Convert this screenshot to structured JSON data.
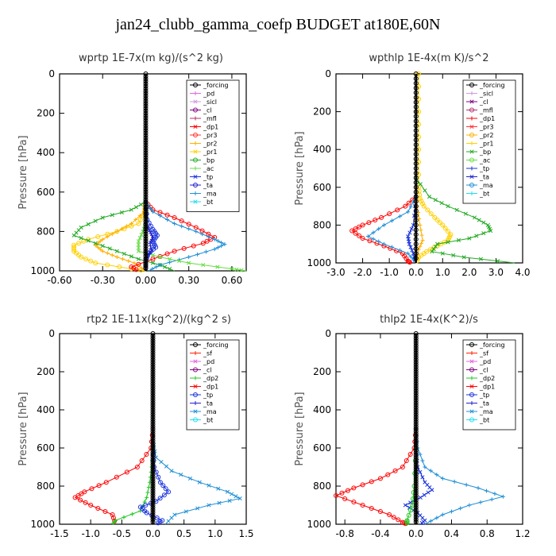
{
  "title": "jan24_clubb_gamma_coefp  BUDGET at180E,60N",
  "colors": {
    "_forcing": "#000000",
    "_pd": "#e066e0",
    "_sicl": "#cc99dd",
    "_cl": "#800080",
    "_mfl": "#b0306a",
    "_dp1": "#ff0000",
    "_dp2": "#22c922",
    "_sf": "#ff2200",
    "_pr3": "#ff3333",
    "_pr2": "#ffb000",
    "_pr1": "#ffd000",
    "_bp": "#22aa22",
    "_ac": "#66dd44",
    "_tp": "#1a33dd",
    "_ta": "#2222cc",
    "_ma": "#1f8fd6",
    "_bt": "#22ddee"
  },
  "chart_data": [
    {
      "type": "line",
      "title": "wprtp  1E-7x(m kg)/(s^2 kg)",
      "ylabel": "Pressure [hPa]",
      "xlim": [
        -0.6,
        0.7
      ],
      "ylim": [
        1000,
        0
      ],
      "xticks": [
        "-0.60",
        "-0.30",
        "0.00",
        "0.30",
        "0.60"
      ],
      "xtick_values": [
        -0.6,
        -0.3,
        0.0,
        0.3,
        0.6
      ],
      "yticks": [
        0,
        200,
        400,
        600,
        800,
        1000
      ],
      "legend_position": "top-right",
      "legend": [
        "_forcing",
        "_pd",
        "_sicl",
        "_cl",
        "_mfl",
        "_dp1",
        "_pr3",
        "_pr2",
        "_pr1",
        "_bp",
        "_ac",
        "_tp",
        "_ta",
        "_ma",
        "_bt"
      ],
      "series": [
        {
          "name": "_pr1",
          "p": [
            650,
            700,
            760,
            800,
            840,
            870,
            900,
            930,
            960,
            990,
            1000
          ],
          "x": [
            0,
            -0.01,
            -0.05,
            -0.2,
            -0.4,
            -0.5,
            -0.5,
            -0.45,
            -0.35,
            -0.1,
            0
          ]
        },
        {
          "name": "_pr2",
          "p": [
            650,
            700,
            760,
            800,
            840,
            870,
            900,
            930,
            960,
            1000
          ],
          "x": [
            0,
            -0.01,
            -0.1,
            -0.2,
            -0.3,
            -0.35,
            -0.3,
            -0.2,
            -0.08,
            0
          ]
        },
        {
          "name": "_bp",
          "p": [
            650,
            690,
            730,
            780,
            820,
            860,
            900,
            940,
            970,
            1000
          ],
          "x": [
            0,
            -0.1,
            -0.3,
            -0.45,
            -0.5,
            -0.35,
            -0.2,
            -0.05,
            0.1,
            0.2
          ]
        },
        {
          "name": "_dp1",
          "p": [
            650,
            690,
            730,
            780,
            830,
            860,
            900,
            940,
            980,
            1000
          ],
          "x": [
            0,
            0.05,
            0.2,
            0.35,
            0.48,
            0.4,
            0.2,
            0.05,
            -0.1,
            -0.05
          ]
        },
        {
          "name": "_ma",
          "p": [
            650,
            700,
            760,
            800,
            840,
            865,
            890,
            930,
            970,
            1000
          ],
          "x": [
            0,
            0.05,
            0.2,
            0.35,
            0.48,
            0.55,
            0.48,
            0.3,
            0.1,
            0.02
          ]
        },
        {
          "name": "_ac",
          "p": [
            650,
            700,
            760,
            800,
            850,
            900,
            930,
            960,
            990,
            1000
          ],
          "x": [
            0,
            0.01,
            0.0,
            -0.02,
            -0.05,
            -0.05,
            0.1,
            0.3,
            0.6,
            0.7
          ]
        },
        {
          "name": "_tp",
          "p": [
            650,
            740,
            790,
            820,
            850,
            880,
            910,
            950,
            1000
          ],
          "x": [
            0,
            0.01,
            0.05,
            0.08,
            0.05,
            0.07,
            0.02,
            0.0,
            0.0
          ]
        },
        {
          "name": "_ta",
          "p": [
            650,
            760,
            800,
            830,
            860,
            900,
            940,
            1000
          ],
          "x": [
            0,
            0.0,
            0.03,
            0.05,
            0.03,
            0.04,
            0.0,
            0.0
          ]
        },
        {
          "name": "_forcing",
          "p": [
            0,
            100,
            200,
            300,
            400,
            500,
            600,
            700,
            800,
            900,
            1000
          ],
          "x": [
            0,
            0,
            0,
            0,
            0,
            0,
            0,
            0,
            0,
            0,
            0
          ]
        }
      ]
    },
    {
      "type": "line",
      "title": "wpthlp  1E-4x(m K)/s^2",
      "ylabel": "Pressure [hPa]",
      "xlim": [
        -3.0,
        4.0
      ],
      "ylim": [
        1000,
        0
      ],
      "xticks": [
        "-3.0",
        "-2.0",
        "-1.0",
        "0.0",
        "1.0",
        "2.0",
        "3.0",
        "4.0"
      ],
      "xtick_values": [
        -3,
        -2,
        -1,
        0,
        1,
        2,
        3,
        4
      ],
      "yticks": [
        0,
        200,
        400,
        600,
        800,
        1000
      ],
      "legend_position": "top-right",
      "legend": [
        "_forcing",
        "_sicl",
        "_cl",
        "_mfl",
        "_dp1",
        "_pr3",
        "_pr2",
        "_pr1",
        "_bp",
        "_ac",
        "_tp",
        "_ta",
        "_ma",
        "_bt"
      ],
      "series": [
        {
          "name": "_pr1",
          "p": [
            0,
            200,
            400,
            600,
            660,
            700,
            760,
            800,
            850,
            880,
            910,
            940,
            970,
            1000
          ],
          "x": [
            0.1,
            0.1,
            0.1,
            0.1,
            0.15,
            0.3,
            0.7,
            1.0,
            1.3,
            1.2,
            0.8,
            0.4,
            0.1,
            0.0
          ]
        },
        {
          "name": "_pr2",
          "p": [
            0,
            200,
            400,
            600,
            700,
            800,
            880,
            930,
            1000
          ],
          "x": [
            0.0,
            0.0,
            0.0,
            0.0,
            0.05,
            0.15,
            0.25,
            0.1,
            0.0
          ]
        },
        {
          "name": "_bp",
          "p": [
            550,
            650,
            700,
            760,
            800,
            830,
            870,
            900,
            940,
            970,
            1000
          ],
          "x": [
            0,
            0.5,
            1.2,
            2.2,
            2.7,
            2.8,
            2.0,
            0.8,
            0.6,
            1.8,
            3.7
          ]
        },
        {
          "name": "_dp1",
          "p": [
            650,
            700,
            760,
            800,
            830,
            870,
            910,
            950,
            990,
            1000
          ],
          "x": [
            0,
            -0.4,
            -1.3,
            -2.0,
            -2.4,
            -2.0,
            -1.2,
            -0.5,
            -0.3,
            -0.2
          ]
        },
        {
          "name": "_ma",
          "p": [
            650,
            730,
            800,
            860,
            900,
            950,
            1000
          ],
          "x": [
            0,
            -0.3,
            -1.2,
            -1.8,
            -1.2,
            -0.3,
            0.0
          ]
        },
        {
          "name": "_tp",
          "p": [
            650,
            800,
            860,
            900,
            950,
            1000
          ],
          "x": [
            0,
            -0.1,
            -0.3,
            -0.25,
            -0.1,
            0.0
          ]
        },
        {
          "name": "_forcing",
          "p": [
            0,
            200,
            400,
            600,
            800,
            1000
          ],
          "x": [
            0,
            0,
            0,
            0,
            0,
            0
          ]
        }
      ]
    },
    {
      "type": "line",
      "title": "rtp2  1E-11x(kg^2)/(kg^2 s)",
      "ylabel": "Pressure [hPa]",
      "xlim": [
        -1.5,
        1.5
      ],
      "ylim": [
        1000,
        0
      ],
      "xticks": [
        "-1.5",
        "-1.0",
        "-0.5",
        "0.0",
        "0.5",
        "1.0",
        "1.5"
      ],
      "xtick_values": [
        -1.5,
        -1.0,
        -0.5,
        0.0,
        0.5,
        1.0,
        1.5
      ],
      "yticks": [
        0,
        200,
        400,
        600,
        800,
        1000
      ],
      "legend_position": "top-right",
      "legend": [
        "_forcing",
        "_sf",
        "_pd",
        "_cl",
        "_dp2",
        "_dp1",
        "_tp",
        "_ta",
        "_ma",
        "_bt"
      ],
      "series": [
        {
          "name": "_dp1",
          "p": [
            500,
            600,
            700,
            780,
            830,
            860,
            900,
            950,
            1000
          ],
          "x": [
            0,
            -0.03,
            -0.25,
            -0.75,
            -1.1,
            -1.25,
            -1.0,
            -0.65,
            -0.6
          ]
        },
        {
          "name": "_dp2",
          "p": [
            600,
            700,
            780,
            860,
            930,
            980,
            1000
          ],
          "x": [
            0,
            -0.02,
            -0.05,
            -0.1,
            -0.2,
            -0.6,
            -0.65
          ]
        },
        {
          "name": "_ma",
          "p": [
            550,
            650,
            720,
            780,
            830,
            865,
            900,
            950,
            1000
          ],
          "x": [
            0,
            0.05,
            0.3,
            0.75,
            1.2,
            1.4,
            0.9,
            0.35,
            0.2
          ]
        },
        {
          "name": "_tp",
          "p": [
            600,
            700,
            780,
            830,
            880,
            910,
            940,
            980,
            1000
          ],
          "x": [
            0,
            0.02,
            0.12,
            0.25,
            0.05,
            -0.2,
            -0.1,
            0.15,
            0.05
          ]
        },
        {
          "name": "_forcing",
          "p": [
            0,
            100,
            200,
            300,
            400,
            500,
            600,
            700,
            800,
            900,
            1000
          ],
          "x": [
            0,
            0,
            0,
            0,
            0,
            0,
            0,
            0,
            0,
            0,
            0
          ]
        }
      ]
    },
    {
      "type": "line",
      "title": "thlp2  1E-4x(K^2)/s",
      "ylabel": "Pressure [hPa]",
      "xlim": [
        -0.9,
        1.2
      ],
      "ylim": [
        1000,
        0
      ],
      "xticks": [
        "-0.8",
        "-0.4",
        "0.0",
        "0.4",
        "0.8",
        "1.2"
      ],
      "xtick_values": [
        -0.8,
        -0.4,
        0.0,
        0.4,
        0.8,
        1.2
      ],
      "yticks": [
        0,
        200,
        400,
        600,
        800,
        1000
      ],
      "legend_position": "top-right",
      "legend": [
        "_forcing",
        "_sf",
        "_pd",
        "_cl",
        "_dp2",
        "_dp1",
        "_tp",
        "_ta",
        "_ma",
        "_bt"
      ],
      "series": [
        {
          "name": "_dp1",
          "p": [
            500,
            600,
            700,
            760,
            810,
            850,
            900,
            950,
            990,
            1000
          ],
          "x": [
            0,
            -0.02,
            -0.15,
            -0.4,
            -0.7,
            -0.9,
            -0.6,
            -0.3,
            -0.15,
            -0.1
          ]
        },
        {
          "name": "_ma",
          "p": [
            500,
            600,
            700,
            760,
            810,
            855,
            900,
            950,
            1000
          ],
          "x": [
            0,
            0.02,
            0.1,
            0.3,
            0.7,
            0.98,
            0.6,
            0.3,
            0.1
          ]
        },
        {
          "name": "_tp",
          "p": [
            600,
            700,
            780,
            820,
            860,
            900,
            940,
            980,
            1000
          ],
          "x": [
            0,
            0.02,
            0.1,
            0.18,
            0.05,
            -0.12,
            0.02,
            0.1,
            0.05
          ]
        },
        {
          "name": "_dp2",
          "p": [
            600,
            800,
            900,
            980,
            1000
          ],
          "x": [
            0,
            -0.02,
            -0.04,
            -0.1,
            -0.1
          ]
        },
        {
          "name": "_forcing",
          "p": [
            0,
            100,
            200,
            300,
            400,
            500,
            600,
            700,
            800,
            900,
            1000
          ],
          "x": [
            0,
            0,
            0,
            0,
            0,
            0,
            0,
            0,
            0,
            0,
            0
          ]
        }
      ]
    }
  ]
}
